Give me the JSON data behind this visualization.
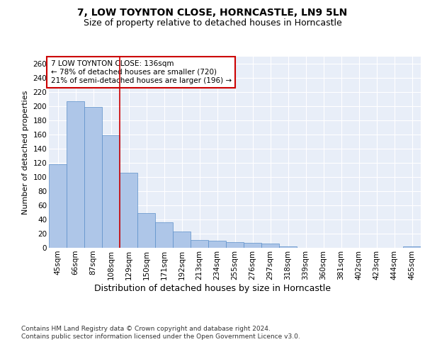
{
  "title": "7, LOW TOYNTON CLOSE, HORNCASTLE, LN9 5LN",
  "subtitle": "Size of property relative to detached houses in Horncastle",
  "xlabel": "Distribution of detached houses by size in Horncastle",
  "ylabel": "Number of detached properties",
  "categories": [
    "45sqm",
    "66sqm",
    "87sqm",
    "108sqm",
    "129sqm",
    "150sqm",
    "171sqm",
    "192sqm",
    "213sqm",
    "234sqm",
    "255sqm",
    "276sqm",
    "297sqm",
    "318sqm",
    "339sqm",
    "360sqm",
    "381sqm",
    "402sqm",
    "423sqm",
    "444sqm",
    "465sqm"
  ],
  "values": [
    118,
    207,
    199,
    159,
    106,
    49,
    36,
    23,
    11,
    10,
    8,
    7,
    6,
    2,
    0,
    0,
    0,
    0,
    0,
    0,
    2
  ],
  "bar_color": "#aec6e8",
  "bar_edge_color": "#5b8fc9",
  "background_color": "#e8eef8",
  "grid_color": "#ffffff",
  "annotation_text": "7 LOW TOYNTON CLOSE: 136sqm\n← 78% of detached houses are smaller (720)\n21% of semi-detached houses are larger (196) →",
  "annotation_box_color": "#ffffff",
  "annotation_box_edge_color": "#cc0000",
  "vline_x": 3.5,
  "vline_color": "#cc0000",
  "ylim": [
    0,
    270
  ],
  "yticks": [
    0,
    20,
    40,
    60,
    80,
    100,
    120,
    140,
    160,
    180,
    200,
    220,
    240,
    260
  ],
  "footer": "Contains HM Land Registry data © Crown copyright and database right 2024.\nContains public sector information licensed under the Open Government Licence v3.0.",
  "title_fontsize": 10,
  "subtitle_fontsize": 9,
  "xlabel_fontsize": 9,
  "ylabel_fontsize": 8,
  "tick_fontsize": 7.5,
  "annotation_fontsize": 7.5,
  "footer_fontsize": 6.5
}
